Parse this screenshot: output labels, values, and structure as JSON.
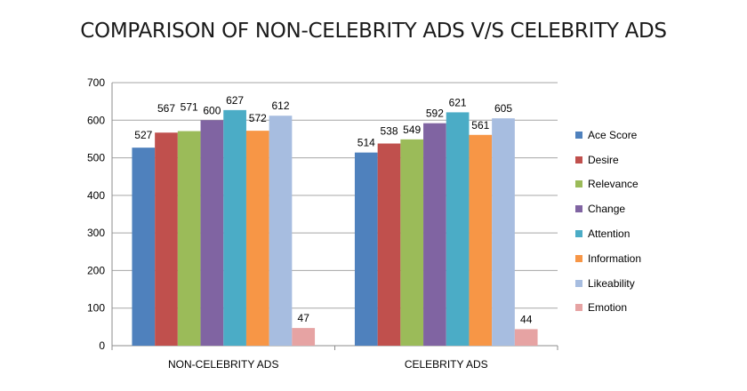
{
  "chart_data": {
    "type": "bar",
    "title": "COMPARISON OF NON-CELEBRITY ADS V/S CELEBRITY ADS",
    "categories": [
      "NON-CELEBRITY ADS",
      "CELEBRITY ADS"
    ],
    "series": [
      {
        "name": "Ace Score",
        "color": "#4f81bd",
        "values": [
          527,
          514
        ]
      },
      {
        "name": "Desire",
        "color": "#c0504d",
        "values": [
          567,
          538
        ]
      },
      {
        "name": "Relevance",
        "color": "#9bbb59",
        "values": [
          571,
          549
        ]
      },
      {
        "name": "Change",
        "color": "#8064a2",
        "values": [
          600,
          592
        ]
      },
      {
        "name": "Attention",
        "color": "#4bacc6",
        "values": [
          627,
          621
        ]
      },
      {
        "name": "Information",
        "color": "#f79646",
        "values": [
          572,
          561
        ]
      },
      {
        "name": "Likeability",
        "color": "#a7bde0",
        "values": [
          612,
          605
        ]
      },
      {
        "name": "Emotion",
        "color": "#e6a3a3",
        "values": [
          47,
          44
        ]
      }
    ],
    "ylim": [
      0,
      700
    ],
    "yticks": [
      0,
      100,
      200,
      300,
      400,
      500,
      600,
      700
    ],
    "grid": true,
    "legend": "right",
    "xlabel": "",
    "ylabel": ""
  }
}
